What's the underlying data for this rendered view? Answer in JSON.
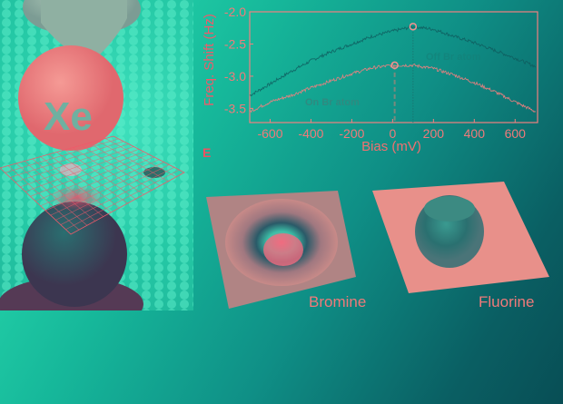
{
  "illustration": {
    "tip_label": "Xe"
  },
  "panel_label": "E",
  "chart_data": {
    "type": "line",
    "xlabel": "Bias (mV)",
    "ylabel": "Freq. Shift (Hz)",
    "xlim": [
      -700,
      710
    ],
    "ylim": [
      -3.72,
      -2.0
    ],
    "xticks": [
      -600,
      -400,
      -200,
      0,
      200,
      400,
      600
    ],
    "yticks": [
      -2.0,
      -2.5,
      -3.0,
      -3.5
    ],
    "xtick_labels": [
      "-600",
      "-400",
      "-200",
      "0",
      "200",
      "400",
      "600"
    ],
    "ytick_labels": [
      "-2.0",
      "-2.5",
      "-3.0",
      "-3.5"
    ],
    "grid": false,
    "series": [
      {
        "name": "Off Br atom",
        "color": "#0f5a5c",
        "x": [
          -700,
          -600,
          -500,
          -400,
          -300,
          -200,
          -100,
          0,
          100,
          200,
          300,
          400,
          500,
          600,
          700
        ],
        "y": [
          -3.3,
          -3.12,
          -2.93,
          -2.76,
          -2.62,
          -2.5,
          -2.38,
          -2.3,
          -2.23,
          -2.27,
          -2.38,
          -2.48,
          -2.6,
          -2.72,
          -2.85
        ],
        "marker": {
          "x": 100,
          "y": -2.23
        }
      },
      {
        "name": "On Br atom",
        "color": "#f08080",
        "x": [
          -700,
          -600,
          -500,
          -400,
          -300,
          -200,
          -100,
          0,
          100,
          200,
          300,
          400,
          500,
          600,
          700
        ],
        "y": [
          -3.55,
          -3.4,
          -3.3,
          -3.18,
          -3.07,
          -2.96,
          -2.87,
          -2.83,
          -2.83,
          -2.88,
          -2.98,
          -3.1,
          -3.24,
          -3.4,
          -3.55
        ],
        "marker": {
          "x": 10,
          "y": -2.83
        }
      }
    ],
    "vlines": [
      10,
      100
    ]
  },
  "surfaces": [
    {
      "label": "Bromine"
    },
    {
      "label": "Fluorine"
    }
  ],
  "colors": {
    "accent": "#f07a7a",
    "background_light": "#2ee8b4",
    "background_dark": "#084e55"
  }
}
